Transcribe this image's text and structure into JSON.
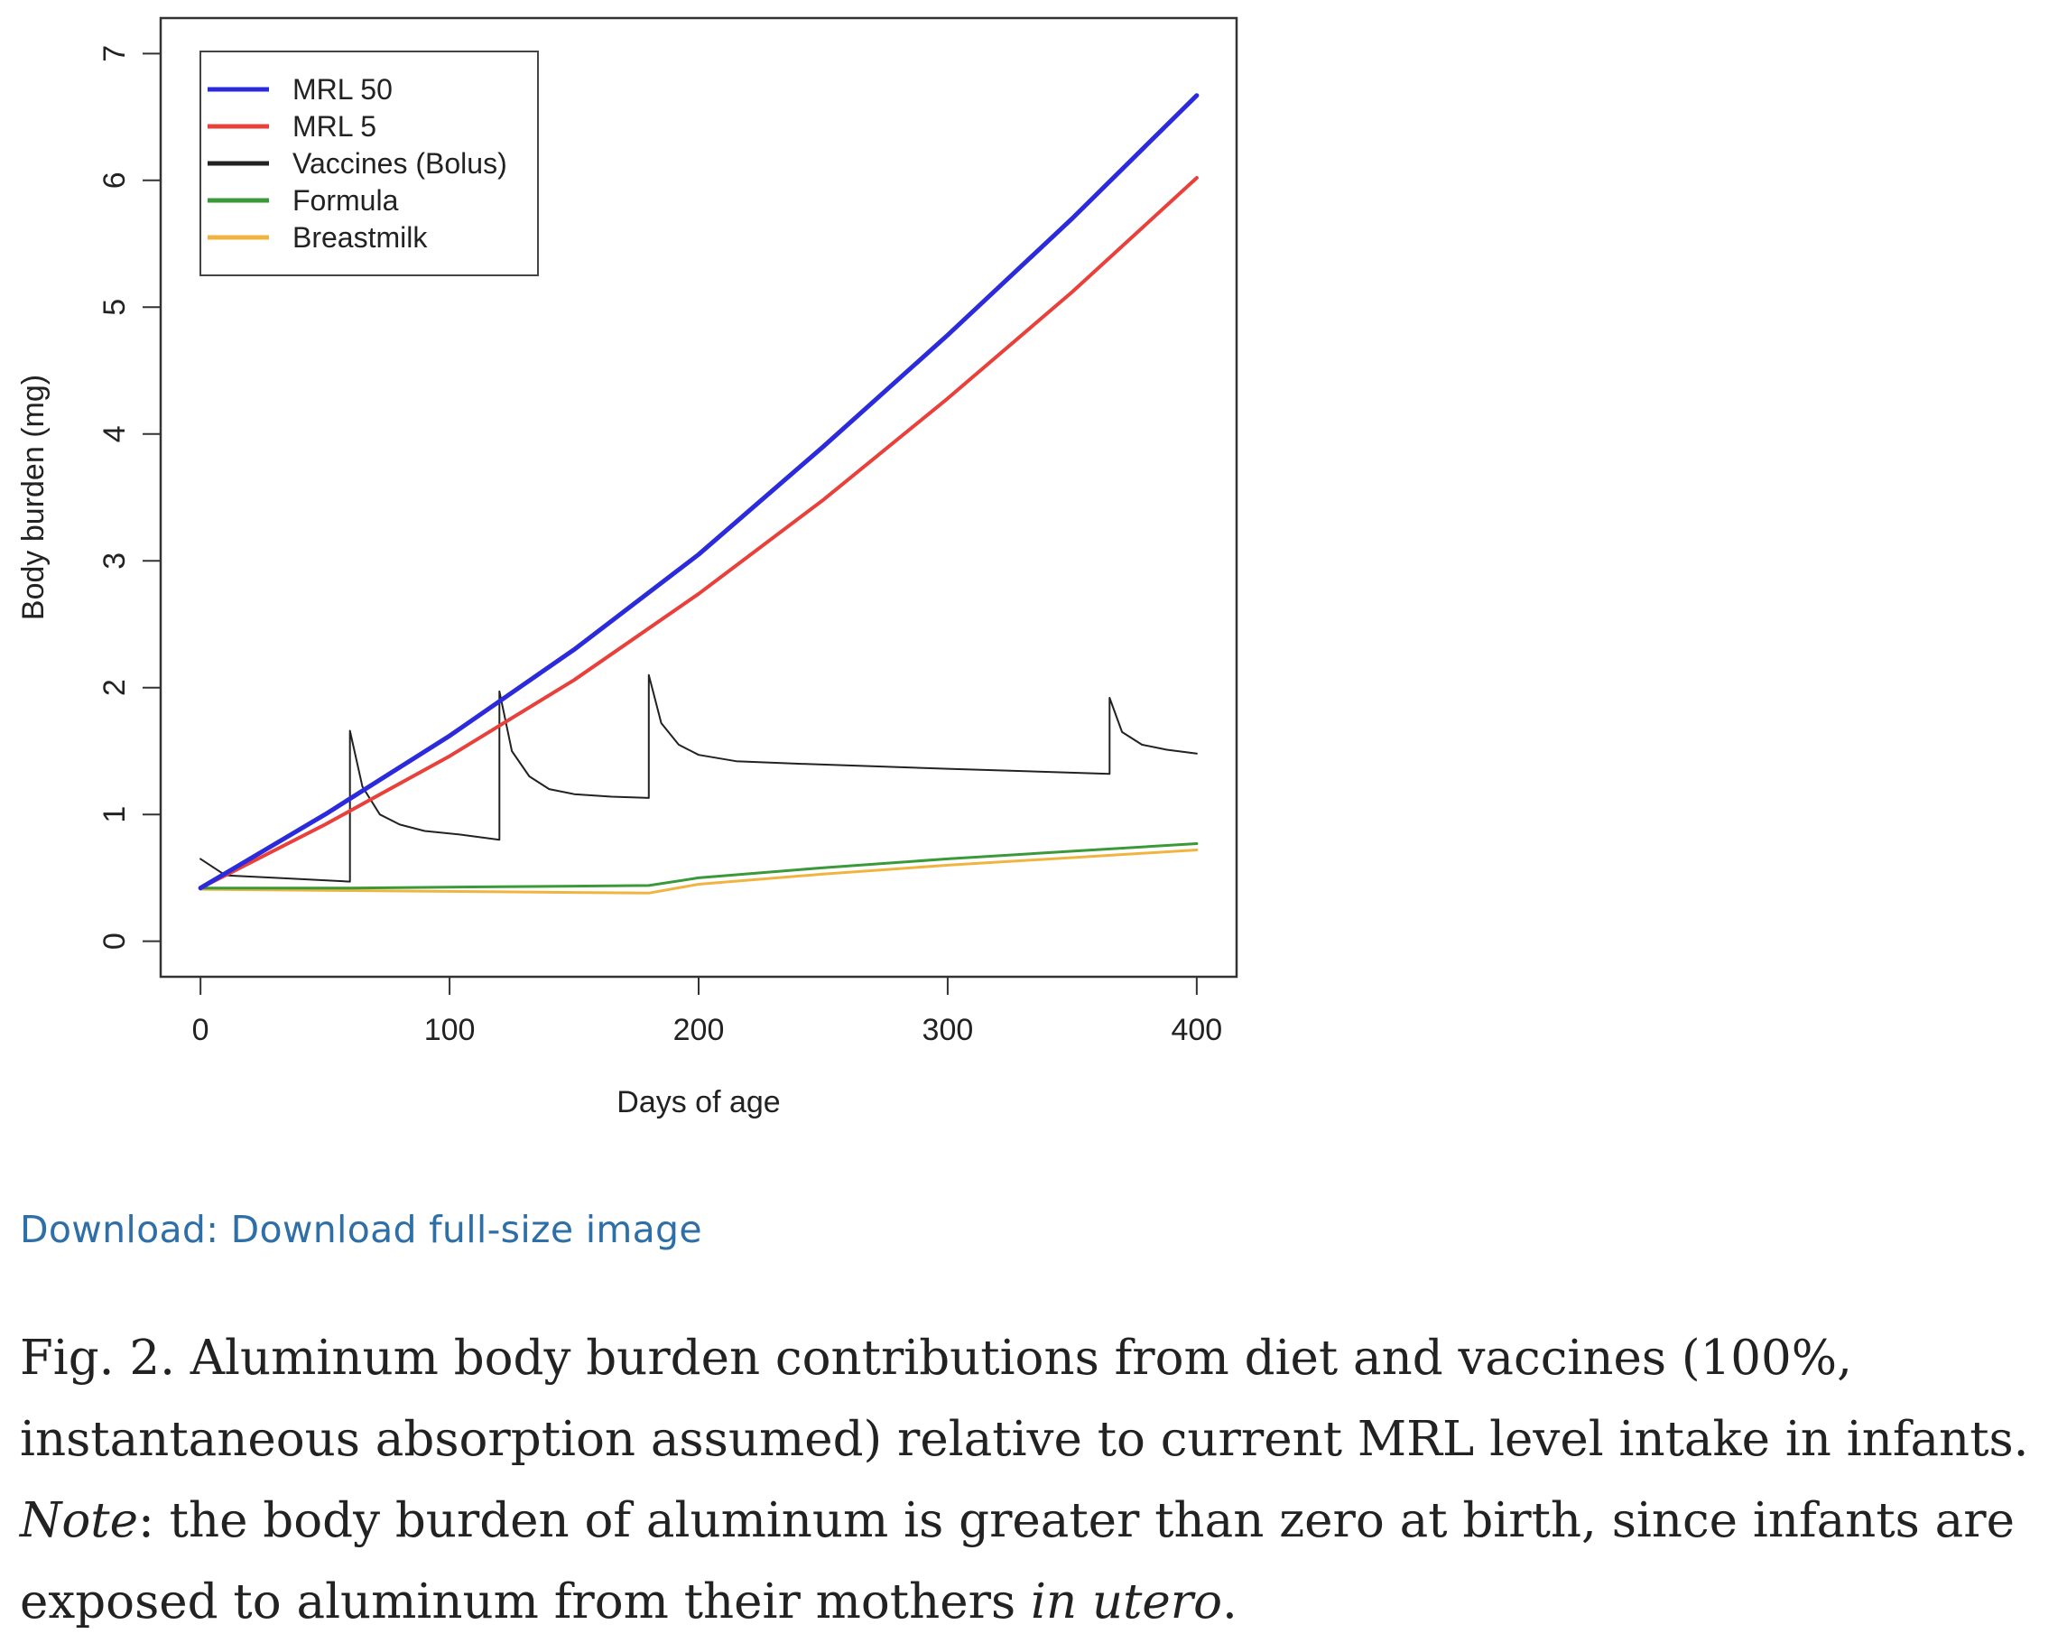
{
  "chart_data": {
    "type": "line",
    "xlabel": "Days of age",
    "ylabel": "Body burden (mg)",
    "xlim": [
      -16,
      416
    ],
    "ylim": [
      -0.28,
      7.28
    ],
    "x_ticks": [
      0,
      100,
      200,
      300,
      400
    ],
    "x_tick_labels": [
      "0",
      "100",
      "200",
      "300",
      "400"
    ],
    "y_ticks": [
      0,
      1,
      2,
      3,
      4,
      5,
      6,
      7
    ],
    "y_tick_labels": [
      "0",
      "1",
      "2",
      "3",
      "4",
      "5",
      "6",
      "7"
    ],
    "legend_position": "top-left",
    "grid": false,
    "series": [
      {
        "name": "MRL 50",
        "color": "#2b2bdc",
        "x": [
          0,
          50,
          100,
          150,
          200,
          250,
          300,
          350,
          400
        ],
        "y": [
          0.42,
          1.0,
          1.62,
          2.3,
          3.05,
          3.9,
          4.78,
          5.7,
          6.67
        ]
      },
      {
        "name": "MRL 5",
        "color": "#e8403a",
        "x": [
          0,
          50,
          100,
          150,
          200,
          250,
          300,
          350,
          400
        ],
        "y": [
          0.42,
          0.92,
          1.46,
          2.06,
          2.74,
          3.48,
          4.28,
          5.12,
          6.02
        ]
      },
      {
        "name": "Vaccines (Bolus)",
        "color": "#222222",
        "x": [
          0,
          10,
          30,
          60,
          60,
          65,
          72,
          80,
          90,
          105,
          120,
          120,
          125,
          132,
          140,
          150,
          165,
          180,
          180,
          185,
          192,
          200,
          215,
          240,
          300,
          365,
          365,
          370,
          378,
          388,
          400
        ],
        "y": [
          0.65,
          0.52,
          0.5,
          0.47,
          1.66,
          1.22,
          1.0,
          0.92,
          0.87,
          0.84,
          0.8,
          1.97,
          1.5,
          1.3,
          1.2,
          1.16,
          1.14,
          1.13,
          2.1,
          1.72,
          1.55,
          1.47,
          1.42,
          1.4,
          1.36,
          1.32,
          1.92,
          1.65,
          1.55,
          1.51,
          1.48
        ]
      },
      {
        "name": "Formula",
        "color": "#3a9a3a",
        "x": [
          0,
          60,
          120,
          180,
          200,
          250,
          300,
          350,
          400
        ],
        "y": [
          0.42,
          0.42,
          0.43,
          0.44,
          0.5,
          0.58,
          0.65,
          0.71,
          0.77
        ]
      },
      {
        "name": "Breastmilk",
        "color": "#f0b440",
        "x": [
          0,
          60,
          120,
          180,
          200,
          250,
          300,
          350,
          400
        ],
        "y": [
          0.41,
          0.4,
          0.39,
          0.38,
          0.45,
          0.53,
          0.6,
          0.66,
          0.72
        ]
      }
    ]
  },
  "download": {
    "label": "Download: Download full-size image"
  },
  "caption": {
    "part1": "Fig. 2. Aluminum body burden contributions from diet and vaccines (100%, instantaneous absorption assumed) relative to current MRL level intake in infants. ",
    "note": "Note",
    "part2": ": the body burden of aluminum is greater than zero at birth, since infants are exposed to aluminum from their mothers ",
    "in_utero": "in utero",
    "part3": "."
  }
}
